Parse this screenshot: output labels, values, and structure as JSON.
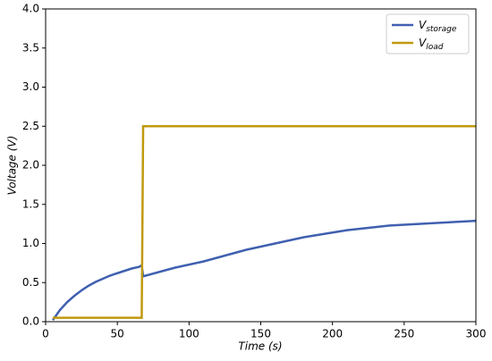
{
  "chart_data": {
    "type": "line",
    "x_label": "Time (s)",
    "y_label": "Voltage (V)",
    "x": [
      5,
      10,
      15,
      20,
      25,
      30,
      35,
      40,
      45,
      50,
      55,
      60,
      65,
      67,
      68,
      70,
      80,
      90,
      100,
      110,
      120,
      130,
      140,
      150,
      160,
      170,
      180,
      190,
      200,
      210,
      220,
      230,
      240,
      250,
      260,
      270,
      280,
      290,
      300
    ],
    "series": [
      {
        "name": "Vstorage",
        "color": "#4060b0",
        "values": [
          0.02,
          0.15,
          0.25,
          0.33,
          0.4,
          0.46,
          0.51,
          0.55,
          0.59,
          0.62,
          0.65,
          0.68,
          0.7,
          0.72,
          0.58,
          0.59,
          0.64,
          0.69,
          0.73,
          0.77,
          0.82,
          0.87,
          0.92,
          0.96,
          1.0,
          1.04,
          1.08,
          1.11,
          1.14,
          1.17,
          1.19,
          1.21,
          1.23,
          1.24,
          1.25,
          1.26,
          1.27,
          1.28,
          1.29
        ]
      },
      {
        "name": "Vload",
        "color": "#c09a10",
        "values": [
          0.05,
          0.05,
          0.05,
          0.05,
          0.05,
          0.05,
          0.05,
          0.05,
          0.05,
          0.05,
          0.05,
          0.05,
          0.05,
          0.05,
          2.5,
          2.5,
          2.5,
          2.5,
          2.5,
          2.5,
          2.5,
          2.5,
          2.5,
          2.5,
          2.5,
          2.5,
          2.5,
          2.5,
          2.5,
          2.5,
          2.5,
          2.5,
          2.5,
          2.5,
          2.5,
          2.5,
          2.5,
          2.5,
          2.5
        ]
      }
    ],
    "xlim": [
      0,
      300
    ],
    "xticks": [
      0,
      50,
      100,
      150,
      200,
      250,
      300
    ],
    "ylim": [
      0,
      4
    ],
    "yticks": [
      {
        "value": 0,
        "label": "0.0"
      },
      0.5,
      {
        "value": 1,
        "label": "1.0"
      },
      1.5,
      {
        "value": 2,
        "label": "2.0"
      },
      2.5,
      {
        "value": 3,
        "label": "3.0"
      },
      3.5,
      {
        "value": 4,
        "label": "4.0"
      }
    ],
    "legend": "upper right",
    "grid": false
  }
}
